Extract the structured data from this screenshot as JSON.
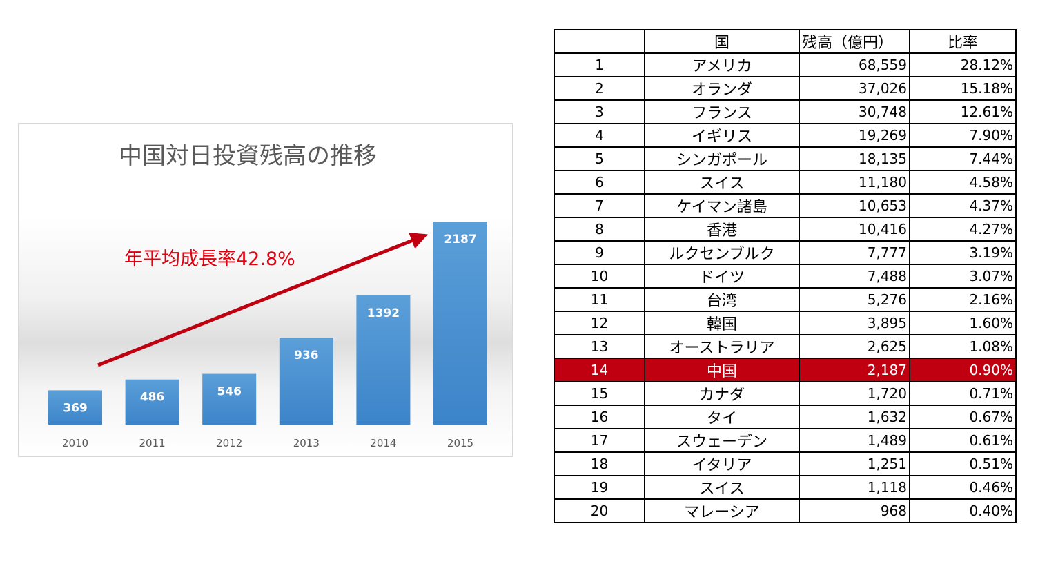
{
  "chart_data": {
    "type": "bar",
    "title": "中国対日投資残高の推移",
    "categories": [
      "2010",
      "2011",
      "2012",
      "2013",
      "2014",
      "2015"
    ],
    "values": [
      369,
      486,
      546,
      936,
      1392,
      2187
    ],
    "bar_color": "#4a8fd0",
    "annotation": {
      "text": "年平均成長率42.8%",
      "color": "#e3000f",
      "arrow_color": "#c00011"
    }
  },
  "table": {
    "headers": [
      "",
      "国",
      "残高（億円）",
      "比率"
    ],
    "highlight_rank": "14",
    "highlight_color": "#c00011",
    "rows": [
      {
        "rank": "1",
        "country": "アメリカ",
        "balance": "68,559",
        "ratio": "28.12%"
      },
      {
        "rank": "2",
        "country": "オランダ",
        "balance": "37,026",
        "ratio": "15.18%"
      },
      {
        "rank": "3",
        "country": "フランス",
        "balance": "30,748",
        "ratio": "12.61%"
      },
      {
        "rank": "4",
        "country": "イギリス",
        "balance": "19,269",
        "ratio": "7.90%"
      },
      {
        "rank": "5",
        "country": "シンガポール",
        "balance": "18,135",
        "ratio": "7.44%"
      },
      {
        "rank": "6",
        "country": "スイス",
        "balance": "11,180",
        "ratio": "4.58%"
      },
      {
        "rank": "7",
        "country": "ケイマン諸島",
        "balance": "10,653",
        "ratio": "4.37%"
      },
      {
        "rank": "8",
        "country": "香港",
        "balance": "10,416",
        "ratio": "4.27%"
      },
      {
        "rank": "9",
        "country": "ルクセンブルク",
        "balance": "7,777",
        "ratio": "3.19%"
      },
      {
        "rank": "10",
        "country": "ドイツ",
        "balance": "7,488",
        "ratio": "3.07%"
      },
      {
        "rank": "11",
        "country": "台湾",
        "balance": "5,276",
        "ratio": "2.16%"
      },
      {
        "rank": "12",
        "country": "韓国",
        "balance": "3,895",
        "ratio": "1.60%"
      },
      {
        "rank": "13",
        "country": "オーストラリア",
        "balance": "2,625",
        "ratio": "1.08%"
      },
      {
        "rank": "14",
        "country": "中国",
        "balance": "2,187",
        "ratio": "0.90%"
      },
      {
        "rank": "15",
        "country": "カナダ",
        "balance": "1,720",
        "ratio": "0.71%"
      },
      {
        "rank": "16",
        "country": "タイ",
        "balance": "1,632",
        "ratio": "0.67%"
      },
      {
        "rank": "17",
        "country": "スウェーデン",
        "balance": "1,489",
        "ratio": "0.61%"
      },
      {
        "rank": "18",
        "country": "イタリア",
        "balance": "1,251",
        "ratio": "0.51%"
      },
      {
        "rank": "19",
        "country": "スイス",
        "balance": "1,118",
        "ratio": "0.46%"
      },
      {
        "rank": "20",
        "country": "マレーシア",
        "balance": "968",
        "ratio": "0.40%"
      }
    ]
  }
}
